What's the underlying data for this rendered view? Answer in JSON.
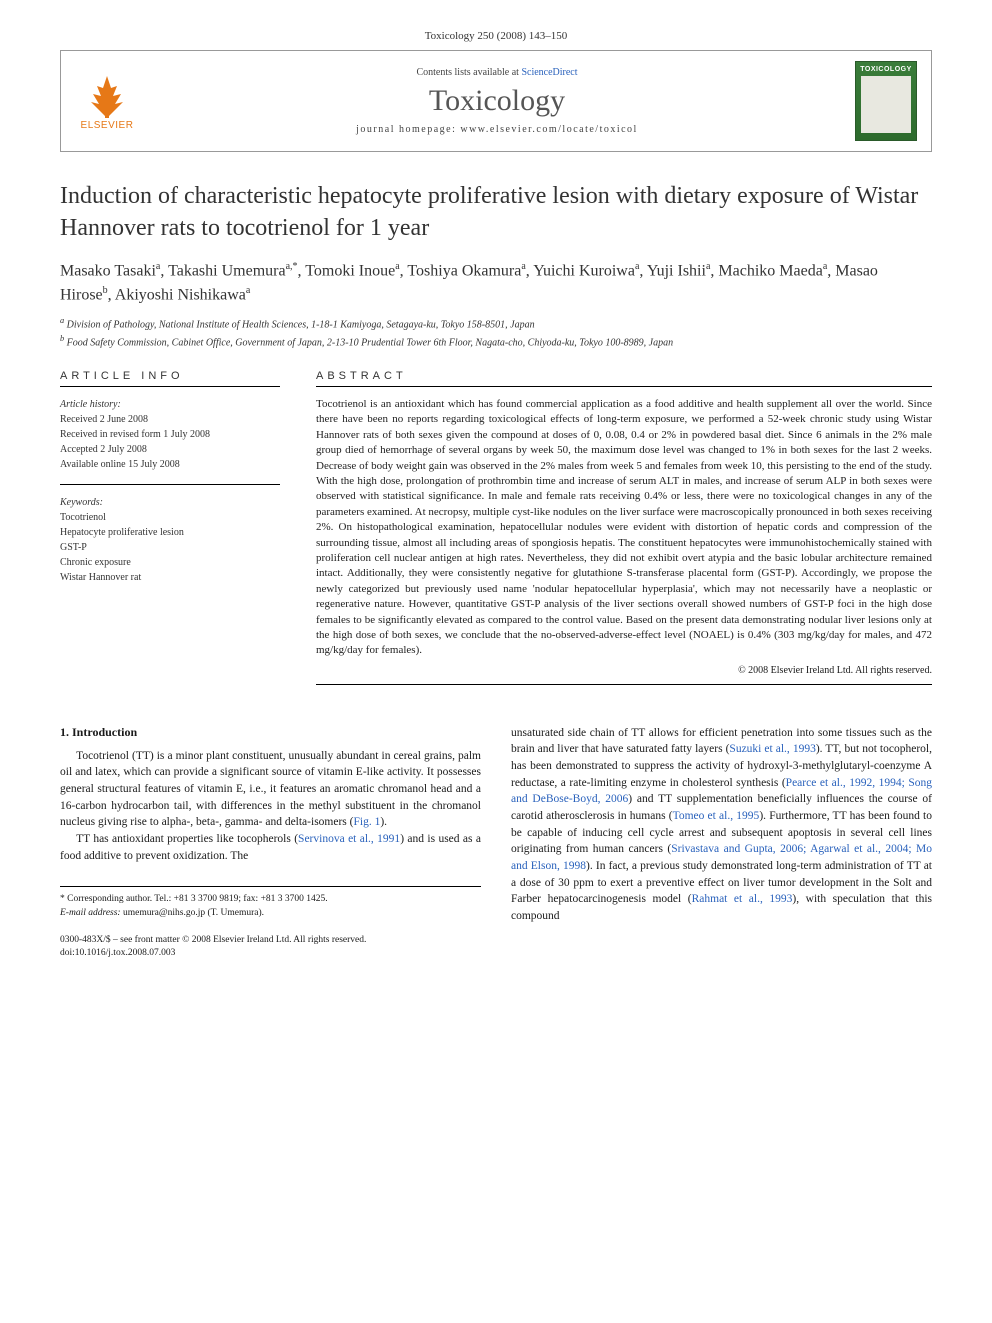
{
  "journal_ref": "Toxicology 250 (2008) 143–150",
  "header": {
    "elsevier_label": "ELSEVIER",
    "contents_prefix": "Contents lists available at ",
    "contents_link": "ScienceDirect",
    "journal_name": "Toxicology",
    "homepage_prefix": "journal homepage: ",
    "homepage_url": "www.elsevier.com/locate/toxicol",
    "cover_title": "TOXICOLOGY",
    "logo_color": "#e67817",
    "cover_bg": "#3a7d3a",
    "link_color": "#2a62bc"
  },
  "title": "Induction of characteristic hepatocyte proliferative lesion with dietary exposure of Wistar Hannover rats to tocotrienol for 1 year",
  "authors_html": "Masako Tasaki<sup>a</sup>, Takashi Umemura<sup>a,*</sup>, Tomoki Inoue<sup>a</sup>, Toshiya Okamura<sup>a</sup>, Yuichi Kuroiwa<sup>a</sup>, Yuji Ishii<sup>a</sup>, Machiko Maeda<sup>a</sup>, Masao Hirose<sup>b</sup>, Akiyoshi Nishikawa<sup>a</sup>",
  "affiliations": {
    "a": "Division of Pathology, National Institute of Health Sciences, 1-18-1 Kamiyoga, Setagaya-ku, Tokyo 158-8501, Japan",
    "b": "Food Safety Commission, Cabinet Office, Government of Japan, 2-13-10 Prudential Tower 6th Floor, Nagata-cho, Chiyoda-ku, Tokyo 100-8989, Japan"
  },
  "article_info": {
    "label": "ARTICLE INFO",
    "history_label": "Article history:",
    "history": [
      "Received 2 June 2008",
      "Received in revised form 1 July 2008",
      "Accepted 2 July 2008",
      "Available online 15 July 2008"
    ],
    "keywords_label": "Keywords:",
    "keywords": [
      "Tocotrienol",
      "Hepatocyte proliferative lesion",
      "GST-P",
      "Chronic exposure",
      "Wistar Hannover rat"
    ]
  },
  "abstract": {
    "label": "ABSTRACT",
    "text": "Tocotrienol is an antioxidant which has found commercial application as a food additive and health supplement all over the world. Since there have been no reports regarding toxicological effects of long-term exposure, we performed a 52-week chronic study using Wistar Hannover rats of both sexes given the compound at doses of 0, 0.08, 0.4 or 2% in powdered basal diet. Since 6 animals in the 2% male group died of hemorrhage of several organs by week 50, the maximum dose level was changed to 1% in both sexes for the last 2 weeks. Decrease of body weight gain was observed in the 2% males from week 5 and females from week 10, this persisting to the end of the study. With the high dose, prolongation of prothrombin time and increase of serum ALT in males, and increase of serum ALP in both sexes were observed with statistical significance. In male and female rats receiving 0.4% or less, there were no toxicological changes in any of the parameters examined. At necropsy, multiple cyst-like nodules on the liver surface were macroscopically pronounced in both sexes receiving 2%. On histopathological examination, hepatocellular nodules were evident with distortion of hepatic cords and compression of the surrounding tissue, almost all including areas of spongiosis hepatis. The constituent hepatocytes were immunohistochemically stained with proliferation cell nuclear antigen at high rates. Nevertheless, they did not exhibit overt atypia and the basic lobular architecture remained intact. Additionally, they were consistently negative for glutathione S-transferase placental form (GST-P). Accordingly, we propose the newly categorized but previously used name 'nodular hepatocellular hyperplasia', which may not necessarily have a neoplastic or regenerative nature. However, quantitative GST-P analysis of the liver sections overall showed numbers of GST-P foci in the high dose females to be significantly elevated as compared to the control value. Based on the present data demonstrating nodular liver lesions only at the high dose of both sexes, we conclude that the no-observed-adverse-effect level (NOAEL) is 0.4% (303 mg/kg/day for males, and 472 mg/kg/day for females).",
    "copyright": "© 2008 Elsevier Ireland Ltd. All rights reserved."
  },
  "body": {
    "intro_heading": "1. Introduction",
    "para1": "Tocotrienol (TT) is a minor plant constituent, unusually abundant in cereal grains, palm oil and latex, which can provide a significant source of vitamin E-like activity. It possesses general structural features of vitamin E, i.e., it features an aromatic chromanol head and a 16-carbon hydrocarbon tail, with differences in the methyl substituent in the chromanol nucleus giving rise to alpha-, beta-, gamma- and delta-isomers (",
    "fig1": "Fig. 1",
    "para1_end": ").",
    "para2_a": "TT has antioxidant properties like tocopherols (",
    "cite_serv": "Servinova et al., 1991",
    "para2_b": ") and is used as a food additive to prevent oxidization. The",
    "col2_a": "unsaturated side chain of TT allows for efficient penetration into some tissues such as the brain and liver that have saturated fatty layers (",
    "cite_suzuki": "Suzuki et al., 1993",
    "col2_b": "). TT, but not tocopherol, has been demonstrated to suppress the activity of hydroxyl-3-methylglutaryl-coenzyme A reductase, a rate-limiting enzyme in cholesterol synthesis (",
    "cite_pearce": "Pearce et al., 1992, 1994; Song and DeBose-Boyd, 2006",
    "col2_c": ") and TT supplementation beneficially influences the course of carotid atherosclerosis in humans (",
    "cite_tomeo": "Tomeo et al., 1995",
    "col2_d": "). Furthermore, TT has been found to be capable of inducing cell cycle arrest and subsequent apoptosis in several cell lines originating from human cancers (",
    "cite_sriv": "Srivastava and Gupta, 2006; Agarwal et al., 2004; Mo and Elson, 1998",
    "col2_e": "). In fact, a previous study demonstrated long-term administration of TT at a dose of 30 ppm to exert a preventive effect on liver tumor development in the Solt and Farber hepatocarcinogenesis model (",
    "cite_rahmat": "Rahmat et al., 1993",
    "col2_f": "), with speculation that this compound"
  },
  "footer": {
    "corr": "* Corresponding author. Tel.: +81 3 3700 9819; fax: +81 3 3700 1425.",
    "email_label": "E-mail address: ",
    "email": "umemura@nihs.go.jp",
    "email_who": " (T. Umemura).",
    "issn": "0300-483X/$ – see front matter © 2008 Elsevier Ireland Ltd. All rights reserved.",
    "doi": "doi:10.1016/j.tox.2008.07.003"
  }
}
